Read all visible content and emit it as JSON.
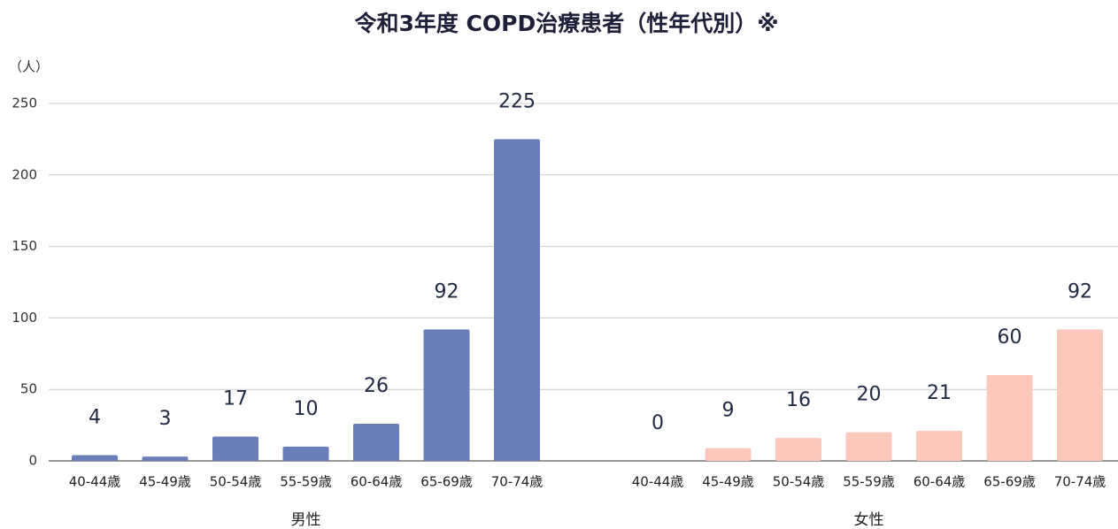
{
  "chart_data": {
    "type": "bar",
    "title": "令和3年度 COPD治療患者（性年代別）※",
    "y_label": "（人）",
    "categories": [
      "40-44歳",
      "45-49歳",
      "50-54歳",
      "55-59歳",
      "60-64歳",
      "65-69歳",
      "70-74歳"
    ],
    "series": [
      {
        "name": "男性",
        "color": "#6a7fb9",
        "values": [
          4,
          3,
          17,
          10,
          26,
          92,
          225
        ]
      },
      {
        "name": "女性",
        "color": "#fcc8bb",
        "values": [
          0,
          9,
          16,
          20,
          21,
          60,
          92
        ]
      }
    ],
    "ylim": [
      0,
      250
    ],
    "yticks": [
      0,
      50,
      100,
      150,
      200,
      250
    ],
    "grid": true
  }
}
